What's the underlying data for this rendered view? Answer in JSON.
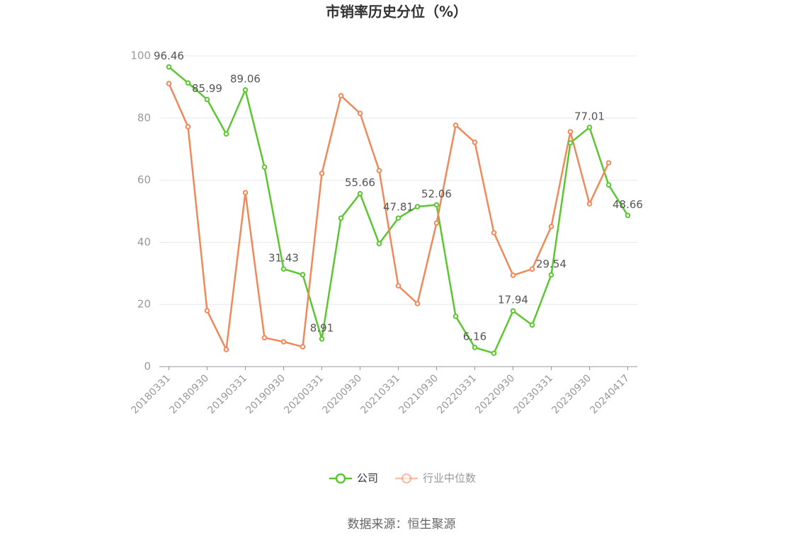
{
  "chart_data": {
    "type": "line",
    "title": "市销率历史分位（%）",
    "categories": [
      "20180331",
      null,
      "20180930",
      null,
      "20190331",
      null,
      "20190930",
      null,
      "20200331",
      null,
      "20200930",
      null,
      "20210331",
      null,
      "20210930",
      null,
      "20220331",
      null,
      "20220930",
      null,
      "20230331",
      null,
      "20230930",
      null,
      "20240417"
    ],
    "series": [
      {
        "name": "公司",
        "color": "#5cc630",
        "values": [
          96.46,
          91.3,
          85.99,
          74.9,
          89.06,
          64.2,
          31.43,
          29.6,
          8.91,
          47.8,
          55.66,
          39.6,
          47.81,
          51.5,
          52.06,
          16.2,
          6.16,
          4.3,
          17.94,
          13.4,
          29.54,
          72.0,
          77.01,
          58.5,
          48.66
        ],
        "value_labels": [
          "96.46",
          null,
          "85.99",
          null,
          "89.06",
          null,
          "31.43",
          null,
          "8.91",
          null,
          "55.66",
          null,
          "47.81",
          null,
          "52.06",
          null,
          "6.16",
          null,
          "17.94",
          null,
          "29.54",
          null,
          "77.01",
          null,
          "48.66"
        ]
      },
      {
        "name": "行业中位数",
        "color": "#f0895a",
        "values": [
          91.1,
          77.2,
          18.0,
          5.5,
          56.0,
          9.3,
          8.0,
          6.4,
          62.2,
          87.2,
          81.5,
          63.1,
          26.0,
          20.3,
          46.2,
          77.7,
          72.2,
          43.1,
          29.4,
          31.4,
          45.1,
          75.6,
          52.4,
          65.6,
          null
        ]
      }
    ],
    "ylim": [
      0,
      100
    ],
    "yticks": [
      0,
      20,
      40,
      60,
      80,
      100
    ],
    "grid": true,
    "source": "数据来源：恒生聚源"
  }
}
